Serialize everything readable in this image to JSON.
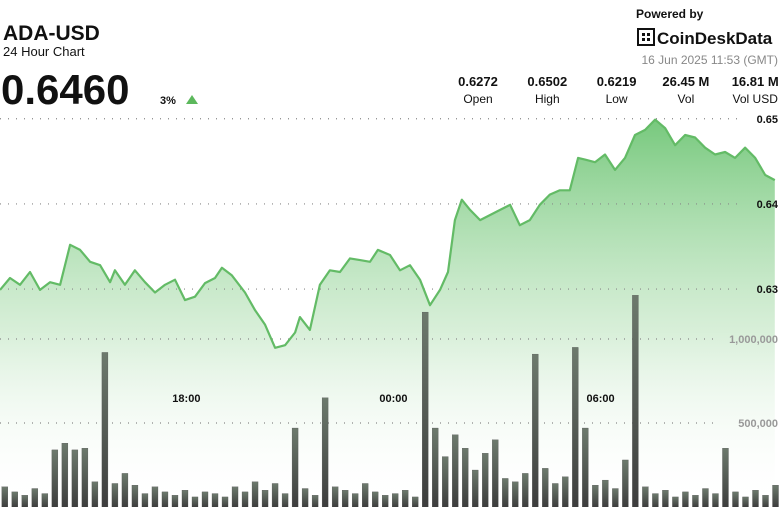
{
  "header": {
    "title": "ADA-USD",
    "subtitle": "24 Hour Chart",
    "price": "0.6460",
    "change": "3%",
    "powered_by": "Powered by",
    "brand": "CoinDeskData",
    "timestamp": "16 Jun 2025 11:53 (GMT)"
  },
  "stats": [
    {
      "value": "0.6272",
      "label": "Open"
    },
    {
      "value": "0.6502",
      "label": "High"
    },
    {
      "value": "0.6219",
      "label": "Low"
    },
    {
      "value": "26.45 M",
      "label": "Vol"
    },
    {
      "value": "16.81 M",
      "label": "Vol USD"
    }
  ],
  "chart_data": {
    "type": "line",
    "xlim": [
      12.6,
      35.2
    ],
    "xticks": [
      {
        "value": 18,
        "label": "18:00"
      },
      {
        "value": 24,
        "label": "00:00"
      },
      {
        "value": 30,
        "label": "06:00"
      }
    ],
    "ylim": [
      0.6044,
      0.6636
    ],
    "yticks": [
      0.65,
      0.64,
      0.63
    ],
    "y2lim": [
      0,
      3000000
    ],
    "y2ticks": [
      {
        "value": 1000000,
        "label": "1,000,000"
      },
      {
        "value": 500000,
        "label": "500,000"
      }
    ],
    "grid": true,
    "series": [
      {
        "type": "line",
        "color": "#63bb66",
        "fill": true,
        "x": [
          12.6,
          12.89,
          13.18,
          13.47,
          13.76,
          14.05,
          14.34,
          14.63,
          14.92,
          15.21,
          15.5,
          15.79,
          15.93,
          16.22,
          16.51,
          16.8,
          17.09,
          17.38,
          17.67,
          17.96,
          18.25,
          18.54,
          18.83,
          19.03,
          19.32,
          19.7,
          19.99,
          20.28,
          20.57,
          20.86,
          21.15,
          21.29,
          21.58,
          21.87,
          22.16,
          22.45,
          22.74,
          23.03,
          23.32,
          23.55,
          23.9,
          24.19,
          24.48,
          24.77,
          25.06,
          25.35,
          25.58,
          25.78,
          25.98,
          26.22,
          26.51,
          26.8,
          27.09,
          27.38,
          27.66,
          27.95,
          28.24,
          28.53,
          28.82,
          29.11,
          29.35,
          29.55,
          29.84,
          30.13,
          30.42,
          30.71,
          31.0,
          31.29,
          31.58,
          31.87,
          32.16,
          32.45,
          32.74,
          33.03,
          33.32,
          33.61,
          33.9,
          34.19,
          34.48,
          34.77,
          35.05
        ],
        "values": [
          0.6299,
          0.6313,
          0.6305,
          0.632,
          0.6299,
          0.6308,
          0.6305,
          0.6352,
          0.6346,
          0.6332,
          0.6328,
          0.6308,
          0.6322,
          0.6305,
          0.6322,
          0.6308,
          0.6296,
          0.6305,
          0.6311,
          0.6287,
          0.6291,
          0.6307,
          0.6313,
          0.6325,
          0.6316,
          0.6296,
          0.6275,
          0.6258,
          0.6231,
          0.6234,
          0.6249,
          0.6267,
          0.6252,
          0.6305,
          0.6322,
          0.632,
          0.6336,
          0.6334,
          0.6332,
          0.6346,
          0.634,
          0.6322,
          0.6328,
          0.6311,
          0.6281,
          0.6299,
          0.632,
          0.6381,
          0.6405,
          0.6393,
          0.6381,
          0.6387,
          0.6393,
          0.6399,
          0.6375,
          0.6381,
          0.6399,
          0.6411,
          0.6416,
          0.6416,
          0.6454,
          0.6452,
          0.6449,
          0.6458,
          0.644,
          0.6454,
          0.6481,
          0.6487,
          0.6499,
          0.6489,
          0.6469,
          0.6481,
          0.6478,
          0.6466,
          0.6458,
          0.6461,
          0.6454,
          0.6466,
          0.6454,
          0.6434,
          0.6428
        ]
      },
      {
        "type": "bar",
        "axis": "y2",
        "color": "#4a4a4a",
        "x": [
          12.74,
          13.03,
          13.32,
          13.61,
          13.9,
          14.19,
          14.48,
          14.77,
          15.06,
          15.35,
          15.64,
          15.93,
          16.22,
          16.51,
          16.8,
          17.09,
          17.38,
          17.67,
          17.96,
          18.25,
          18.54,
          18.83,
          19.12,
          19.41,
          19.7,
          19.99,
          20.28,
          20.57,
          20.86,
          21.15,
          21.44,
          21.73,
          22.02,
          22.31,
          22.6,
          22.89,
          23.18,
          23.47,
          23.76,
          24.05,
          24.34,
          24.63,
          24.92,
          25.21,
          25.5,
          25.79,
          26.08,
          26.37,
          26.66,
          26.95,
          27.24,
          27.53,
          27.82,
          28.11,
          28.4,
          28.69,
          28.98,
          29.27,
          29.56,
          29.85,
          30.14,
          30.43,
          30.72,
          31.01,
          31.3,
          31.59,
          31.88,
          32.17,
          32.46,
          32.75,
          33.04,
          33.33,
          33.62,
          33.91,
          34.2,
          34.49,
          34.78,
          35.07
        ],
        "values": [
          120000,
          90000,
          70000,
          110000,
          80000,
          340000,
          380000,
          340000,
          350000,
          150000,
          920000,
          140000,
          200000,
          130000,
          80000,
          120000,
          90000,
          70000,
          100000,
          60000,
          90000,
          80000,
          60000,
          120000,
          90000,
          150000,
          100000,
          140000,
          80000,
          470000,
          110000,
          70000,
          650000,
          120000,
          100000,
          80000,
          140000,
          90000,
          70000,
          80000,
          100000,
          60000,
          1160000,
          470000,
          300000,
          430000,
          350000,
          220000,
          320000,
          400000,
          170000,
          150000,
          200000,
          910000,
          230000,
          140000,
          180000,
          950000,
          470000,
          130000,
          160000,
          110000,
          280000,
          1260000,
          120000,
          80000,
          100000,
          60000,
          90000,
          70000,
          110000,
          80000,
          350000,
          90000,
          60000,
          100000,
          70000,
          130000
        ]
      }
    ]
  }
}
